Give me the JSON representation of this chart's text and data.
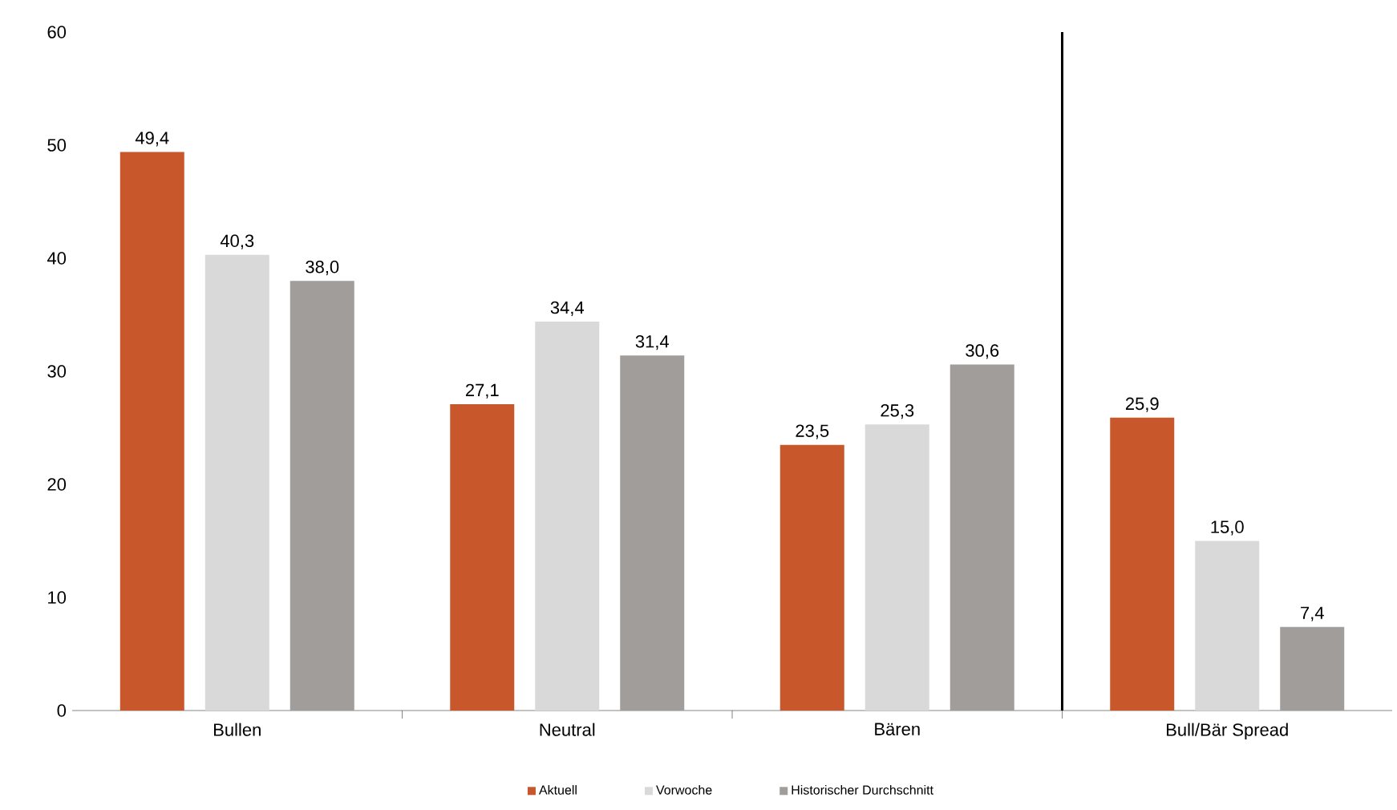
{
  "chart_data": {
    "type": "bar",
    "categories": [
      "Bullen",
      "Neutral",
      "Bären",
      "Bull/Bär Spread"
    ],
    "series": [
      {
        "name": "Aktuell",
        "color": "#c8572b",
        "values": [
          49.4,
          27.1,
          23.5,
          25.9
        ],
        "value_labels": [
          "49,4",
          "27,1",
          "23,5",
          "25,9"
        ]
      },
      {
        "name": "Vorwoche",
        "color": "#d9d9d9",
        "values": [
          40.3,
          34.4,
          25.3,
          15.0
        ],
        "value_labels": [
          "40,3",
          "34,4",
          "25,3",
          "15,0"
        ]
      },
      {
        "name": "Historischer Durchschnitt",
        "color": "#a09d9a",
        "values": [
          38.0,
          31.4,
          30.6,
          7.4
        ],
        "value_labels": [
          "38,0",
          "31,4",
          "30,6",
          "7,4"
        ]
      }
    ],
    "ylim": [
      0,
      60
    ],
    "yticks": [
      0,
      10,
      20,
      30,
      40,
      50,
      60
    ],
    "grid": false,
    "legend": "bottom"
  }
}
